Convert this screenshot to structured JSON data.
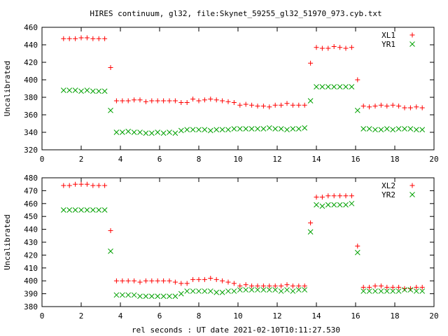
{
  "title": "HIRES continuum, gl32, file:Skynet_59255_gl32_51970_973.cyb.txt",
  "xlabel": "rel seconds : UT date 2021-02-10T10:11:27.530",
  "colors": {
    "red": "#ff0000",
    "green": "#00a000"
  },
  "chart_data": [
    {
      "type": "scatter",
      "ylabel": "Uncalibrated",
      "xlim": [
        0,
        20
      ],
      "ylim": [
        320,
        460
      ],
      "xticks": [
        0,
        2,
        4,
        6,
        8,
        10,
        12,
        14,
        16,
        18,
        20
      ],
      "yticks": [
        320,
        340,
        360,
        380,
        400,
        420,
        440,
        460
      ],
      "legend_position": "top-right",
      "series": [
        {
          "name": "XL1",
          "marker": "plus",
          "color": "#ff0000",
          "points": [
            [
              1.1,
              447
            ],
            [
              1.4,
              447
            ],
            [
              1.7,
              447
            ],
            [
              2.0,
              448
            ],
            [
              2.3,
              448
            ],
            [
              2.6,
              447
            ],
            [
              2.9,
              447
            ],
            [
              3.2,
              447
            ],
            [
              3.5,
              414
            ],
            [
              3.8,
              376
            ],
            [
              4.1,
              376
            ],
            [
              4.4,
              376
            ],
            [
              4.7,
              377
            ],
            [
              5.0,
              377
            ],
            [
              5.3,
              375
            ],
            [
              5.6,
              376
            ],
            [
              5.9,
              376
            ],
            [
              6.2,
              376
            ],
            [
              6.5,
              376
            ],
            [
              6.8,
              376
            ],
            [
              7.1,
              374
            ],
            [
              7.4,
              374
            ],
            [
              7.7,
              378
            ],
            [
              8.0,
              376
            ],
            [
              8.3,
              377
            ],
            [
              8.6,
              378
            ],
            [
              8.9,
              377
            ],
            [
              9.2,
              376
            ],
            [
              9.5,
              375
            ],
            [
              9.8,
              374
            ],
            [
              10.1,
              371
            ],
            [
              10.4,
              372
            ],
            [
              10.7,
              371
            ],
            [
              11.0,
              370
            ],
            [
              11.3,
              370
            ],
            [
              11.6,
              369
            ],
            [
              11.9,
              371
            ],
            [
              12.2,
              371
            ],
            [
              12.5,
              373
            ],
            [
              12.8,
              371
            ],
            [
              13.1,
              371
            ],
            [
              13.4,
              371
            ],
            [
              13.7,
              419
            ],
            [
              14.0,
              437
            ],
            [
              14.3,
              436
            ],
            [
              14.6,
              436
            ],
            [
              14.9,
              438
            ],
            [
              15.2,
              437
            ],
            [
              15.5,
              436
            ],
            [
              15.8,
              437
            ],
            [
              16.1,
              400
            ],
            [
              16.4,
              370
            ],
            [
              16.7,
              369
            ],
            [
              17.0,
              370
            ],
            [
              17.3,
              371
            ],
            [
              17.6,
              370
            ],
            [
              17.9,
              371
            ],
            [
              18.2,
              370
            ],
            [
              18.5,
              368
            ],
            [
              18.8,
              368
            ],
            [
              19.1,
              369
            ],
            [
              19.4,
              368
            ]
          ]
        },
        {
          "name": "YR1",
          "marker": "cross",
          "color": "#00a000",
          "points": [
            [
              1.1,
              388
            ],
            [
              1.4,
              388
            ],
            [
              1.7,
              388
            ],
            [
              2.0,
              387
            ],
            [
              2.3,
              388
            ],
            [
              2.6,
              387
            ],
            [
              2.9,
              387
            ],
            [
              3.2,
              387
            ],
            [
              3.5,
              365
            ],
            [
              3.8,
              340
            ],
            [
              4.1,
              340
            ],
            [
              4.4,
              341
            ],
            [
              4.7,
              340
            ],
            [
              5.0,
              340
            ],
            [
              5.3,
              339
            ],
            [
              5.6,
              339
            ],
            [
              5.9,
              340
            ],
            [
              6.2,
              339
            ],
            [
              6.5,
              340
            ],
            [
              6.8,
              339
            ],
            [
              7.1,
              342
            ],
            [
              7.4,
              343
            ],
            [
              7.7,
              343
            ],
            [
              8.0,
              343
            ],
            [
              8.3,
              343
            ],
            [
              8.6,
              342
            ],
            [
              8.9,
              343
            ],
            [
              9.2,
              343
            ],
            [
              9.5,
              343
            ],
            [
              9.8,
              344
            ],
            [
              10.1,
              344
            ],
            [
              10.4,
              344
            ],
            [
              10.7,
              344
            ],
            [
              11.0,
              344
            ],
            [
              11.3,
              344
            ],
            [
              11.6,
              345
            ],
            [
              11.9,
              344
            ],
            [
              12.2,
              344
            ],
            [
              12.5,
              343
            ],
            [
              12.8,
              344
            ],
            [
              13.1,
              344
            ],
            [
              13.4,
              345
            ],
            [
              13.7,
              376
            ],
            [
              14.0,
              392
            ],
            [
              14.3,
              392
            ],
            [
              14.6,
              392
            ],
            [
              14.9,
              392
            ],
            [
              15.2,
              392
            ],
            [
              15.5,
              392
            ],
            [
              15.8,
              392
            ],
            [
              16.1,
              365
            ],
            [
              16.4,
              344
            ],
            [
              16.7,
              344
            ],
            [
              17.0,
              343
            ],
            [
              17.3,
              343
            ],
            [
              17.6,
              344
            ],
            [
              17.9,
              343
            ],
            [
              18.2,
              344
            ],
            [
              18.5,
              344
            ],
            [
              18.8,
              344
            ],
            [
              19.1,
              343
            ],
            [
              19.4,
              343
            ]
          ]
        }
      ]
    },
    {
      "type": "scatter",
      "ylabel": "Uncalibrated",
      "xlim": [
        0,
        20
      ],
      "ylim": [
        380,
        480
      ],
      "xticks": [
        0,
        2,
        4,
        6,
        8,
        10,
        12,
        14,
        16,
        18,
        20
      ],
      "yticks": [
        380,
        390,
        400,
        410,
        420,
        430,
        440,
        450,
        460,
        470,
        480
      ],
      "legend_position": "top-right",
      "series": [
        {
          "name": "XL2",
          "marker": "plus",
          "color": "#ff0000",
          "points": [
            [
              1.1,
              474
            ],
            [
              1.4,
              474
            ],
            [
              1.7,
              475
            ],
            [
              2.0,
              475
            ],
            [
              2.3,
              475
            ],
            [
              2.6,
              474
            ],
            [
              2.9,
              474
            ],
            [
              3.2,
              474
            ],
            [
              3.5,
              439
            ],
            [
              3.8,
              400
            ],
            [
              4.1,
              400
            ],
            [
              4.4,
              400
            ],
            [
              4.7,
              400
            ],
            [
              5.0,
              399
            ],
            [
              5.3,
              400
            ],
            [
              5.6,
              400
            ],
            [
              5.9,
              400
            ],
            [
              6.2,
              400
            ],
            [
              6.5,
              400
            ],
            [
              6.8,
              399
            ],
            [
              7.1,
              398
            ],
            [
              7.4,
              398
            ],
            [
              7.7,
              401
            ],
            [
              8.0,
              401
            ],
            [
              8.3,
              401
            ],
            [
              8.6,
              402
            ],
            [
              8.9,
              401
            ],
            [
              9.2,
              400
            ],
            [
              9.5,
              399
            ],
            [
              9.8,
              398
            ],
            [
              10.1,
              396
            ],
            [
              10.4,
              397
            ],
            [
              10.7,
              396
            ],
            [
              11.0,
              396
            ],
            [
              11.3,
              396
            ],
            [
              11.6,
              396
            ],
            [
              11.9,
              396
            ],
            [
              12.2,
              396
            ],
            [
              12.5,
              397
            ],
            [
              12.8,
              396
            ],
            [
              13.1,
              396
            ],
            [
              13.4,
              396
            ],
            [
              13.7,
              445
            ],
            [
              14.0,
              465
            ],
            [
              14.3,
              465
            ],
            [
              14.6,
              466
            ],
            [
              14.9,
              466
            ],
            [
              15.2,
              466
            ],
            [
              15.5,
              466
            ],
            [
              15.8,
              466
            ],
            [
              16.1,
              427
            ],
            [
              16.4,
              395
            ],
            [
              16.7,
              395
            ],
            [
              17.0,
              396
            ],
            [
              17.3,
              396
            ],
            [
              17.6,
              395
            ],
            [
              17.9,
              395
            ],
            [
              18.2,
              395
            ],
            [
              18.5,
              394
            ],
            [
              18.8,
              394
            ],
            [
              19.1,
              395
            ],
            [
              19.4,
              395
            ]
          ]
        },
        {
          "name": "YR2",
          "marker": "cross",
          "color": "#00a000",
          "points": [
            [
              1.1,
              455
            ],
            [
              1.4,
              455
            ],
            [
              1.7,
              455
            ],
            [
              2.0,
              455
            ],
            [
              2.3,
              455
            ],
            [
              2.6,
              455
            ],
            [
              2.9,
              455
            ],
            [
              3.2,
              455
            ],
            [
              3.5,
              423
            ],
            [
              3.8,
              389
            ],
            [
              4.1,
              389
            ],
            [
              4.4,
              389
            ],
            [
              4.7,
              389
            ],
            [
              5.0,
              388
            ],
            [
              5.3,
              388
            ],
            [
              5.6,
              388
            ],
            [
              5.9,
              388
            ],
            [
              6.2,
              388
            ],
            [
              6.5,
              388
            ],
            [
              6.8,
              388
            ],
            [
              7.1,
              390
            ],
            [
              7.4,
              392
            ],
            [
              7.7,
              392
            ],
            [
              8.0,
              392
            ],
            [
              8.3,
              392
            ],
            [
              8.6,
              392
            ],
            [
              8.9,
              391
            ],
            [
              9.2,
              391
            ],
            [
              9.5,
              392
            ],
            [
              9.8,
              392
            ],
            [
              10.1,
              393
            ],
            [
              10.4,
              393
            ],
            [
              10.7,
              393
            ],
            [
              11.0,
              393
            ],
            [
              11.3,
              393
            ],
            [
              11.6,
              393
            ],
            [
              11.9,
              393
            ],
            [
              12.2,
              392
            ],
            [
              12.5,
              393
            ],
            [
              12.8,
              392
            ],
            [
              13.1,
              393
            ],
            [
              13.4,
              393
            ],
            [
              13.7,
              438
            ],
            [
              14.0,
              459
            ],
            [
              14.3,
              458
            ],
            [
              14.6,
              459
            ],
            [
              14.9,
              459
            ],
            [
              15.2,
              459
            ],
            [
              15.5,
              459
            ],
            [
              15.8,
              460
            ],
            [
              16.1,
              422
            ],
            [
              16.4,
              392
            ],
            [
              16.7,
              392
            ],
            [
              17.0,
              392
            ],
            [
              17.3,
              392
            ],
            [
              17.6,
              392
            ],
            [
              17.9,
              392
            ],
            [
              18.2,
              392
            ],
            [
              18.5,
              393
            ],
            [
              18.8,
              393
            ],
            [
              19.1,
              392
            ],
            [
              19.4,
              392
            ]
          ]
        }
      ]
    }
  ]
}
